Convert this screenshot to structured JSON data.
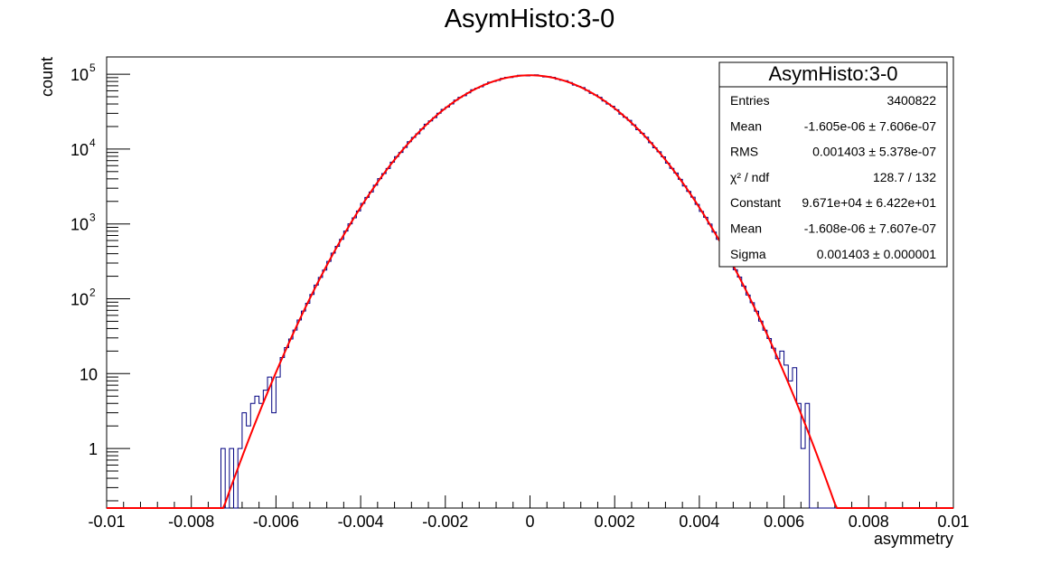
{
  "chart_data": {
    "type": "histogram",
    "title": "AsymHisto:3-0",
    "xlabel": "asymmetry",
    "ylabel": "count",
    "xlim": [
      -0.01,
      0.01
    ],
    "ylim": [
      0.16,
      170000
    ],
    "yscale": "log",
    "grid": false,
    "x_ticks": [
      {
        "value": -0.01,
        "label": "-0.01"
      },
      {
        "value": -0.008,
        "label": "-0.008"
      },
      {
        "value": -0.006,
        "label": "-0.006"
      },
      {
        "value": -0.004,
        "label": "-0.004"
      },
      {
        "value": -0.002,
        "label": "-0.002"
      },
      {
        "value": 0,
        "label": "0"
      },
      {
        "value": 0.002,
        "label": "0.002"
      },
      {
        "value": 0.004,
        "label": "0.004"
      },
      {
        "value": 0.006,
        "label": "0.006"
      },
      {
        "value": 0.008,
        "label": "0.008"
      },
      {
        "value": 0.01,
        "label": "0.01"
      }
    ],
    "y_ticks": [
      {
        "value": 1,
        "label": "1",
        "sup": ""
      },
      {
        "value": 10,
        "label": "10",
        "sup": ""
      },
      {
        "value": 100,
        "label": "10",
        "sup": "2"
      },
      {
        "value": 1000,
        "label": "10",
        "sup": "3"
      },
      {
        "value": 10000,
        "label": "10",
        "sup": "4"
      },
      {
        "value": 100000,
        "label": "10",
        "sup": "5"
      }
    ],
    "histogram": {
      "bin_width": 0.0001,
      "line_color": "#000080",
      "bins": [
        {
          "x": -0.0073,
          "count": 1
        },
        {
          "x": -0.0071,
          "count": 1
        },
        {
          "x": -0.0069,
          "count": 1
        },
        {
          "x": -0.0068,
          "count": 3
        },
        {
          "x": -0.0067,
          "count": 2
        },
        {
          "x": -0.0066,
          "count": 4
        },
        {
          "x": -0.0065,
          "count": 5
        },
        {
          "x": -0.0064,
          "count": 4
        },
        {
          "x": -0.0063,
          "count": 6
        },
        {
          "x": -0.0062,
          "count": 9
        },
        {
          "x": -0.0061,
          "count": 3
        },
        {
          "x": -0.006,
          "count": 9
        },
        {
          "x": 0.0059,
          "count": 20
        },
        {
          "x": 0.006,
          "count": 13
        },
        {
          "x": 0.0061,
          "count": 8
        },
        {
          "x": 0.0062,
          "count": 12
        },
        {
          "x": 0.0063,
          "count": 4
        },
        {
          "x": 0.0064,
          "count": 1
        },
        {
          "x": 0.0065,
          "count": 4
        }
      ]
    },
    "fit": {
      "type": "gaus",
      "line_color": "#ff0000",
      "constant": 96710,
      "mean": -1.608e-06,
      "sigma": 0.001403
    },
    "stats_box": {
      "title": "AsymHisto:3-0",
      "position": "top-right",
      "rows": [
        {
          "label": "Entries",
          "value": "3400822"
        },
        {
          "label": "Mean",
          "value": "-1.605e-06 ± 7.606e-07"
        },
        {
          "label": "RMS",
          "value": "0.001403 ± 5.378e-07"
        },
        {
          "label": "χ² / ndf",
          "value": "128.7 / 132"
        },
        {
          "label": "Constant",
          "value": "9.671e+04 ± 6.422e+01"
        },
        {
          "label": "Mean",
          "value": "-1.608e-06 ± 7.607e-07"
        },
        {
          "label": "Sigma",
          "value": "0.001403 ± 0.000001"
        }
      ]
    }
  }
}
